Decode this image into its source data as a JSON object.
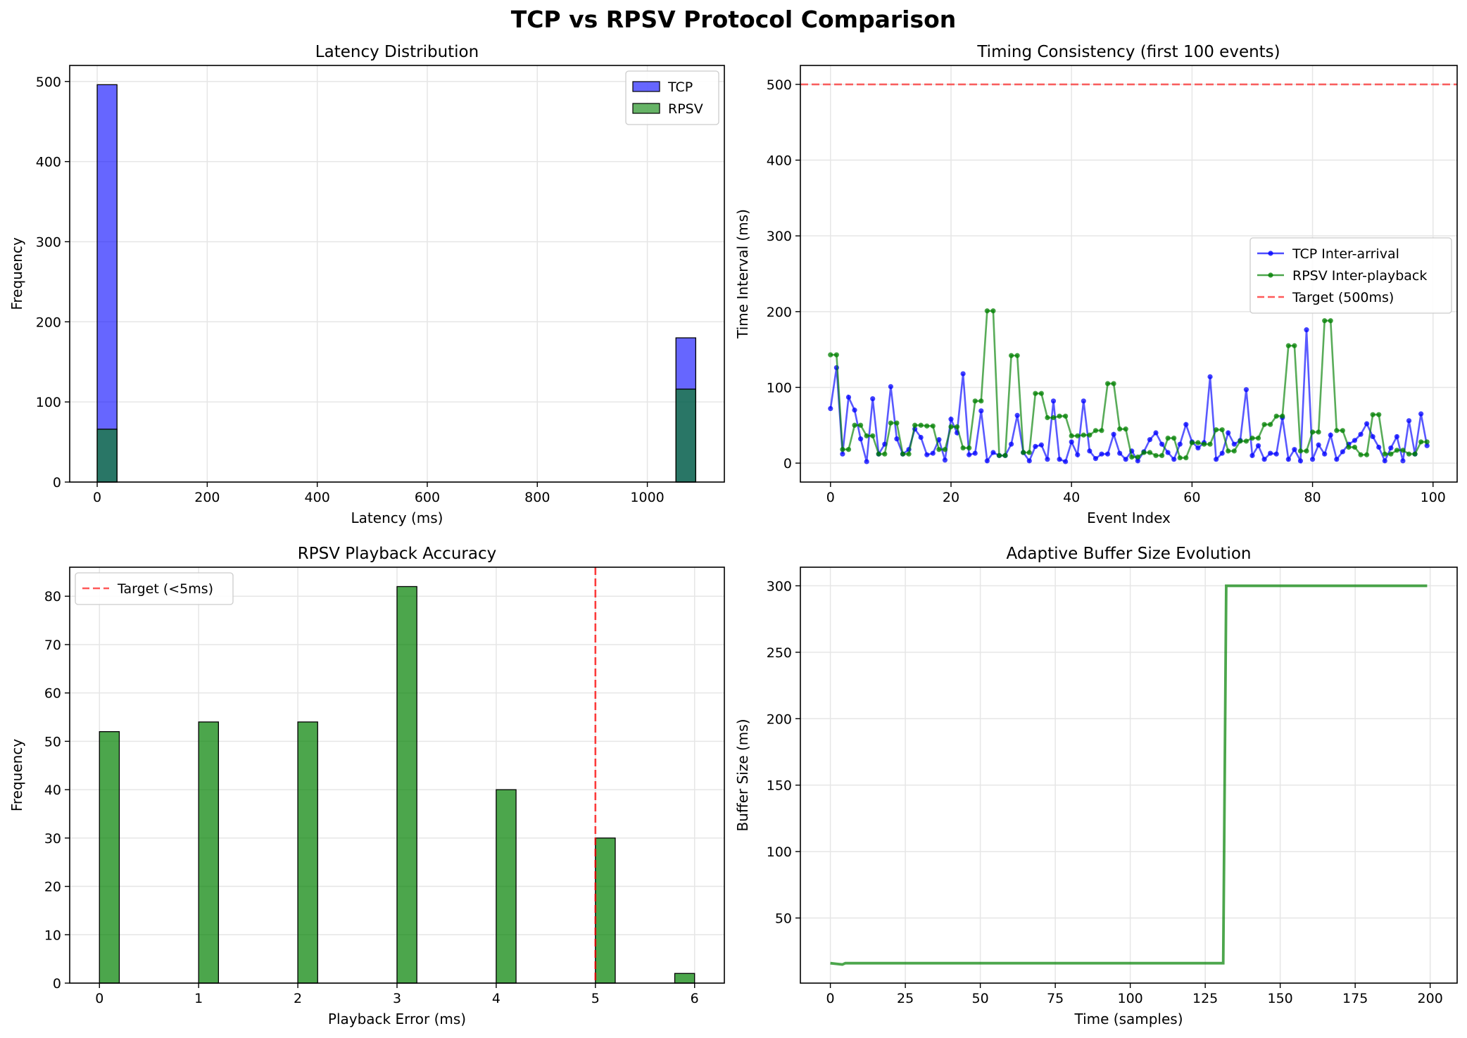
{
  "figure": {
    "suptitle": "TCP vs RPSV Protocol Comparison"
  },
  "chart_data": [
    {
      "type": "bar",
      "subtype": "histogram",
      "title": "Latency Distribution",
      "xlabel": "Latency (ms)",
      "ylabel": "Frequency",
      "xlim": [
        -50,
        1140
      ],
      "ylim": [
        0,
        520
      ],
      "xticks": [
        0,
        200,
        400,
        600,
        800,
        1000
      ],
      "yticks": [
        0,
        100,
        200,
        300,
        400,
        500
      ],
      "grid": true,
      "legend_position": "top-right",
      "series": [
        {
          "name": "TCP",
          "color": "#0000ff",
          "alpha": 0.6,
          "bins": [
            {
              "x0": 0,
              "x1": 36,
              "value": 496
            },
            {
              "x0": 1052,
              "x1": 1088,
              "value": 180
            }
          ]
        },
        {
          "name": "RPSV",
          "color": "#008000",
          "alpha": 0.6,
          "bins": [
            {
              "x0": 0,
              "x1": 36,
              "value": 66
            },
            {
              "x0": 1052,
              "x1": 1088,
              "value": 116
            }
          ]
        }
      ]
    },
    {
      "type": "line",
      "title": "Timing Consistency (first 100 events)",
      "xlabel": "Event Index",
      "ylabel": "Time Interval (ms)",
      "xlim": [
        -5,
        104
      ],
      "ylim": [
        -25,
        525
      ],
      "xticks": [
        0,
        20,
        40,
        60,
        80,
        100
      ],
      "yticks": [
        0,
        100,
        200,
        300,
        400,
        500
      ],
      "grid": true,
      "legend_position": "center-right",
      "series": [
        {
          "name": "TCP Inter-arrival",
          "color": "#0000ff",
          "marker": "o",
          "values": [
            72,
            126,
            12,
            87,
            70,
            32,
            2,
            85,
            12,
            25,
            101,
            32,
            12,
            18,
            45,
            34,
            11,
            13,
            31,
            4,
            58,
            40,
            118,
            11,
            13,
            69,
            3,
            14,
            10,
            10,
            25,
            63,
            14,
            3,
            22,
            24,
            5,
            82,
            5,
            2,
            28,
            11,
            82,
            16,
            6,
            12,
            12,
            38,
            13,
            5,
            16,
            3,
            15,
            31,
            40,
            25,
            14,
            5,
            25,
            51,
            28,
            20,
            27,
            114,
            5,
            13,
            40,
            25,
            30,
            97,
            10,
            23,
            5,
            13,
            12,
            60,
            5,
            18,
            3,
            176,
            5,
            24,
            12,
            37,
            5,
            15,
            25,
            30,
            38,
            52,
            35,
            21,
            3,
            20,
            35,
            3,
            56,
            12,
            65,
            23
          ]
        },
        {
          "name": "RPSV Inter-playback",
          "color": "#008000",
          "marker": "o",
          "values": [
            143,
            143,
            18,
            18,
            50,
            50,
            36,
            36,
            12,
            12,
            53,
            53,
            12,
            12,
            50,
            50,
            49,
            49,
            18,
            18,
            48,
            48,
            20,
            20,
            82,
            82,
            201,
            201,
            10,
            10,
            142,
            142,
            14,
            14,
            92,
            92,
            60,
            60,
            62,
            62,
            36,
            36,
            37,
            37,
            43,
            43,
            105,
            105,
            45,
            45,
            8,
            8,
            14,
            14,
            10,
            10,
            33,
            33,
            7,
            7,
            27,
            27,
            25,
            25,
            44,
            44,
            16,
            16,
            29,
            29,
            33,
            33,
            51,
            51,
            62,
            62,
            155,
            155,
            16,
            16,
            41,
            41,
            188,
            188,
            43,
            43,
            21,
            21,
            11,
            11,
            64,
            64,
            12,
            12,
            17,
            17,
            12,
            12,
            28,
            28
          ]
        },
        {
          "name": "Target (500ms)",
          "color": "#ff0000",
          "style": "dashed",
          "y": 500
        }
      ]
    },
    {
      "type": "bar",
      "subtype": "histogram",
      "title": "RPSV Playback Accuracy",
      "xlabel": "Playback Error (ms)",
      "ylabel": "Frequency",
      "xlim": [
        -0.3,
        6.3
      ],
      "ylim": [
        0,
        86
      ],
      "xticks": [
        0,
        1,
        2,
        3,
        4,
        5,
        6
      ],
      "yticks": [
        0,
        10,
        20,
        30,
        40,
        50,
        60,
        70,
        80
      ],
      "grid": true,
      "legend_position": "top-left",
      "series": [
        {
          "name": "",
          "color": "#008000",
          "bins": [
            {
              "x0": 0,
              "x1": 0.2,
              "value": 52
            },
            {
              "x0": 1,
              "x1": 1.2,
              "value": 54
            },
            {
              "x0": 2,
              "x1": 2.2,
              "value": 54
            },
            {
              "x0": 3,
              "x1": 3.2,
              "value": 82
            },
            {
              "x0": 4,
              "x1": 4.2,
              "value": 40
            },
            {
              "x0": 5,
              "x1": 5.2,
              "value": 30
            },
            {
              "x0": 5.8,
              "x1": 6.0,
              "value": 2
            }
          ]
        },
        {
          "name": "Target (<5ms)",
          "color": "#ff0000",
          "style": "dashed",
          "x": 5
        }
      ]
    },
    {
      "type": "line",
      "title": "Adaptive Buffer Size Evolution",
      "xlabel": "Time (samples)",
      "ylabel": "Buffer Size (ms)",
      "xlim": [
        -10,
        209
      ],
      "ylim": [
        1,
        314
      ],
      "xticks": [
        0,
        25,
        50,
        75,
        100,
        125,
        150,
        175,
        200
      ],
      "yticks": [
        50,
        100,
        150,
        200,
        250,
        300
      ],
      "grid": true,
      "series": [
        {
          "name": "",
          "color": "#008000",
          "points": [
            [
              0,
              16
            ],
            [
              2,
              15.5
            ],
            [
              4,
              15
            ],
            [
              5,
              16
            ],
            [
              131,
              16
            ],
            [
              132,
              300
            ],
            [
              199,
              300
            ]
          ]
        }
      ]
    }
  ]
}
